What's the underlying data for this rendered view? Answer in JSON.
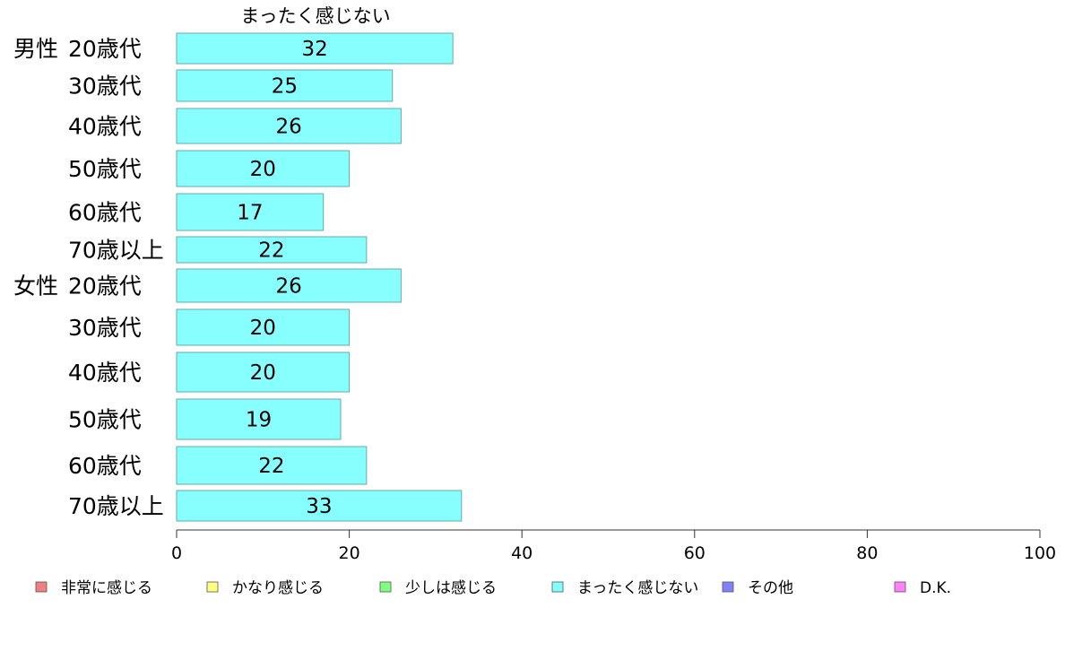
{
  "chart_data": {
    "type": "bar",
    "orientation": "horizontal",
    "column_title": "まったく感じない",
    "groups": [
      {
        "label": "男性",
        "rows": [
          {
            "label": "20歳代",
            "value": 32
          },
          {
            "label": "30歳代",
            "value": 25
          },
          {
            "label": "40歳代",
            "value": 26
          },
          {
            "label": "50歳代",
            "value": 20
          },
          {
            "label": "60歳代",
            "value": 17
          },
          {
            "label": "70歳以上",
            "value": 22
          }
        ]
      },
      {
        "label": "女性",
        "rows": [
          {
            "label": "20歳代",
            "value": 26
          },
          {
            "label": "30歳代",
            "value": 20
          },
          {
            "label": "40歳代",
            "value": 20
          },
          {
            "label": "50歳代",
            "value": 19
          },
          {
            "label": "60歳代",
            "value": 22
          },
          {
            "label": "70歳以上",
            "value": 33
          }
        ]
      }
    ],
    "x_axis": {
      "min": 0,
      "max": 100,
      "ticks": [
        "0",
        "20",
        "40",
        "60",
        "80",
        "100"
      ]
    },
    "bar_color": "#88ffff",
    "bar_stroke": "#6aa8a8",
    "legend_position": "bottom",
    "legend": [
      {
        "label": "非常に感じる",
        "color": "#f08080"
      },
      {
        "label": "かなり感じる",
        "color": "#ffff80"
      },
      {
        "label": "少しは感じる",
        "color": "#80ff80"
      },
      {
        "label": "まったく感じない",
        "color": "#80ffff"
      },
      {
        "label": "その他",
        "color": "#8080ff"
      },
      {
        "label": "D.K.",
        "color": "#ff80ff"
      }
    ]
  }
}
